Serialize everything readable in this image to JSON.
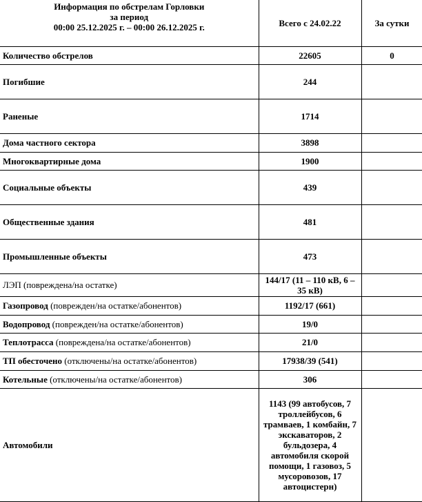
{
  "header": {
    "title_line1": "Информация по обстрелам Горловки",
    "title_line2": "за период",
    "title_line3": "00:00 25.12.2025 г. – 00:00 26.12.2025 г.",
    "col_total": "Всего с 24.02.22",
    "col_day": "За сутки"
  },
  "rows": [
    {
      "label": "Количество обстрелов",
      "note": "",
      "total": "22605",
      "day": "0"
    },
    {
      "label": "Погибшие",
      "note": "",
      "total": "244",
      "day": ""
    },
    {
      "label": "Раненые",
      "note": "",
      "total": "1714",
      "day": ""
    },
    {
      "label": "Дома частного сектора",
      "note": "",
      "total": "3898",
      "day": ""
    },
    {
      "label": "Многоквартирные дома",
      "note": "",
      "total": "1900",
      "day": ""
    },
    {
      "label": "Социальные объекты",
      "note": "",
      "total": "439",
      "day": ""
    },
    {
      "label": "Общественные здания",
      "note": "",
      "total": "481",
      "day": ""
    },
    {
      "label": "Промышленные объекты",
      "note": "",
      "total": "473",
      "day": ""
    },
    {
      "label": "",
      "note": "ЛЭП (повреждена/на остатке)",
      "total": "144/17 (11 – 110 кВ, 6 – 35 кВ)",
      "day": ""
    },
    {
      "label": "Газопровод",
      "note": " (поврежден/на остатке/абонентов)",
      "total": "1192/17 (661)",
      "day": ""
    },
    {
      "label": "Водопровод",
      "note": " (поврежден/на остатке/абонентов)",
      "total": "19/0",
      "day": ""
    },
    {
      "label": "Теплотрасса",
      "note": " (повреждена/на остатке/абонентов)",
      "total": "21/0",
      "day": ""
    },
    {
      "label": "ТП обесточено",
      "note": " (отключены/на остатке/абонентов)",
      "total": "17938/39 (541)",
      "day": ""
    },
    {
      "label": "Котельные",
      "note": " (отключены/на остатке/абонентов)",
      "total": "306",
      "day": ""
    },
    {
      "label": "Автомобили",
      "note": "",
      "total": "1143 (99 автобусов, 7 троллейбусов, 6 трамваев, 1 комбайн, 7 экскаваторов, 2 бульдозера, 4 автомобиля скорой помощи, 1 газовоз, 5 мусоровозов, 17 автоцистерн)",
      "day": ""
    }
  ]
}
